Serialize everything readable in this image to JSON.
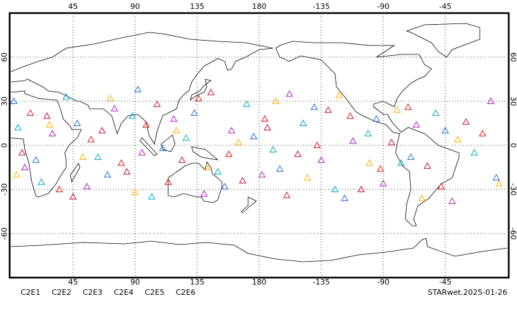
{
  "chart_data": {
    "type": "scatter",
    "xlim": [
      0,
      360
    ],
    "ylim": [
      -90,
      90
    ],
    "xticks": [
      45,
      90,
      135,
      180,
      -135,
      -90,
      -45
    ],
    "yticks": [
      60,
      30,
      0,
      -30,
      -60
    ],
    "grid": true,
    "caption": "STARwet.2025-01-26",
    "series": [
      {
        "name": "C2E1",
        "color": "#00a8cc",
        "x": [
          5,
          22,
          40,
          63,
          88,
          102,
          127,
          150,
          171,
          -170,
          -148,
          -125,
          -101,
          -77,
          -52,
          -24
        ],
        "y": [
          12,
          -25,
          33,
          -8,
          20,
          -35,
          5,
          -18,
          28,
          -3,
          15,
          -30,
          8,
          -12,
          22,
          -5
        ]
      },
      {
        "name": "C2E2",
        "color": "#b020c0",
        "x": [
          10,
          30,
          55,
          75,
          95,
          118,
          140,
          160,
          -178,
          -158,
          -135,
          -112,
          -90,
          -66,
          -40,
          -12
        ],
        "y": [
          -15,
          8,
          -28,
          25,
          -5,
          18,
          -33,
          10,
          -20,
          35,
          -10,
          3,
          -26,
          14,
          -38,
          30
        ]
      },
      {
        "name": "C2E3",
        "color": "#2070d0",
        "x": [
          2,
          18,
          48,
          70,
          92,
          110,
          133,
          155,
          176,
          -165,
          -140,
          -118,
          -95,
          -70,
          -45,
          -8
        ],
        "y": [
          30,
          -10,
          15,
          -20,
          38,
          -2,
          22,
          -28,
          6,
          -16,
          26,
          -36,
          18,
          -8,
          10,
          -22
        ]
      },
      {
        "name": "C2E4",
        "color": "#c0104a",
        "x": [
          8,
          26,
          45,
          66,
          84,
          106,
          124,
          145,
          168,
          -174,
          -152,
          -130,
          -106,
          -84,
          -58,
          -30
        ],
        "y": [
          -5,
          20,
          -35,
          10,
          -18,
          28,
          -10,
          36,
          -24,
          12,
          -6,
          24,
          -30,
          2,
          -14,
          16
        ]
      },
      {
        "name": "C2E5",
        "color": "#e01818",
        "x": [
          14,
          35,
          58,
          80,
          98,
          114,
          136,
          158,
          -176,
          -160,
          -138,
          -114,
          -92,
          -72,
          -48,
          -18
        ],
        "y": [
          22,
          -30,
          4,
          -12,
          14,
          -25,
          32,
          -6,
          18,
          -34,
          0,
          20,
          -16,
          26,
          -28,
          8
        ]
      },
      {
        "name": "C2E6",
        "color": "#ffb000",
        "x": [
          4,
          28,
          52,
          72,
          90,
          120,
          142,
          165,
          -168,
          -145,
          -122,
          -100,
          -80,
          -62,
          -36,
          -6
        ],
        "y": [
          -20,
          14,
          -8,
          32,
          -32,
          10,
          -15,
          2,
          30,
          -22,
          34,
          -12,
          24,
          -36,
          4,
          -26
        ]
      }
    ]
  }
}
